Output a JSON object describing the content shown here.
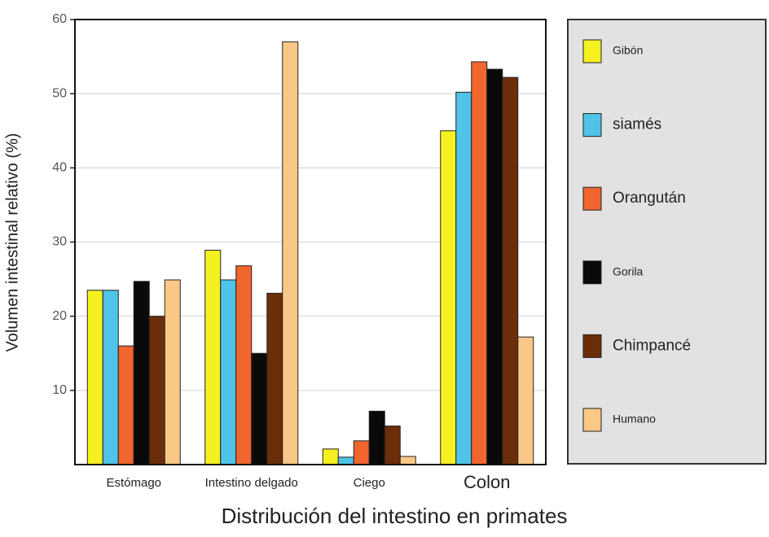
{
  "chart_data": {
    "type": "bar",
    "xlabel": "Distribución del intestino en primates",
    "ylabel": "Volumen intestinal relativo (%)",
    "categories": [
      "Estómago",
      "Intestino delgado",
      "Ciego",
      "Colon"
    ],
    "series": [
      {
        "name": "Gibón",
        "color": "#f5f020",
        "values": [
          23.5,
          28.9,
          2.1,
          45
        ]
      },
      {
        "name": "siamés",
        "color": "#4fc3e8",
        "values": [
          23.5,
          24.9,
          1,
          50.2
        ]
      },
      {
        "name": "Orangután",
        "color": "#f0662e",
        "values": [
          16,
          26.8,
          3.2,
          54.3
        ]
      },
      {
        "name": "Gorila",
        "color": "#0a0a0a",
        "values": [
          24.7,
          15,
          7.2,
          53.3
        ]
      },
      {
        "name": "Chimpancé",
        "color": "#6b2e08",
        "values": [
          20,
          23.1,
          5.2,
          52.2
        ]
      },
      {
        "name": "Humano",
        "color": "#f9c887",
        "values": [
          24.9,
          57,
          1.1,
          17.2
        ]
      }
    ],
    "ylim": [
      0,
      60
    ],
    "yticks": [
      10,
      20,
      30,
      40,
      50,
      60
    ],
    "grid": true,
    "legend": "right"
  }
}
